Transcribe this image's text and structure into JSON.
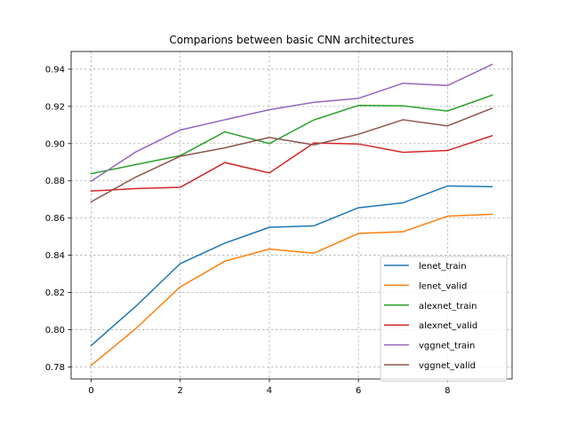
{
  "chart_data": {
    "type": "line",
    "title": "Comparions between basic CNN architectures",
    "xlabel": "",
    "ylabel": "",
    "xlim": [
      -0.45,
      9.45
    ],
    "ylim": [
      0.7735,
      0.9495
    ],
    "xticks": [
      0,
      2,
      4,
      6,
      8
    ],
    "yticks": [
      0.78,
      0.8,
      0.82,
      0.84,
      0.86,
      0.88,
      0.9,
      0.92,
      0.94
    ],
    "xtick_labels": [
      "0",
      "2",
      "4",
      "6",
      "8"
    ],
    "ytick_labels": [
      "0.78",
      "0.80",
      "0.82",
      "0.84",
      "0.86",
      "0.88",
      "0.90",
      "0.92",
      "0.94"
    ],
    "grid": true,
    "legend_position": "lower-right",
    "x": [
      0,
      1,
      2,
      3,
      4,
      5,
      6,
      7,
      8,
      9
    ],
    "series": [
      {
        "name": "lenet_train",
        "color": "#1f77b4",
        "values": [
          0.7915,
          0.8125,
          0.8355,
          0.8465,
          0.855,
          0.8558,
          0.8655,
          0.8682,
          0.8772,
          0.8768
        ]
      },
      {
        "name": "lenet_valid",
        "color": "#ff7f0e",
        "values": [
          0.7808,
          0.8005,
          0.823,
          0.8368,
          0.8433,
          0.8411,
          0.8517,
          0.8526,
          0.861,
          0.862
        ]
      },
      {
        "name": "alexnet_train",
        "color": "#2ca02c",
        "values": [
          0.8838,
          0.8887,
          0.8935,
          0.9063,
          0.9,
          0.9127,
          0.9205,
          0.9203,
          0.9175,
          0.926
        ]
      },
      {
        "name": "alexnet_valid",
        "color": "#d62728",
        "values": [
          0.8745,
          0.8758,
          0.8765,
          0.8898,
          0.8842,
          0.9003,
          0.8998,
          0.8953,
          0.8963,
          0.9042
        ]
      },
      {
        "name": "vggnet_train",
        "color": "#9467bd",
        "values": [
          0.8798,
          0.8955,
          0.9073,
          0.9128,
          0.9182,
          0.9222,
          0.9243,
          0.9324,
          0.9312,
          0.9425
        ]
      },
      {
        "name": "vggnet_valid",
        "color": "#8c564b",
        "values": [
          0.8687,
          0.882,
          0.8932,
          0.8977,
          0.9033,
          0.8993,
          0.905,
          0.9128,
          0.9095,
          0.919
        ]
      }
    ]
  }
}
